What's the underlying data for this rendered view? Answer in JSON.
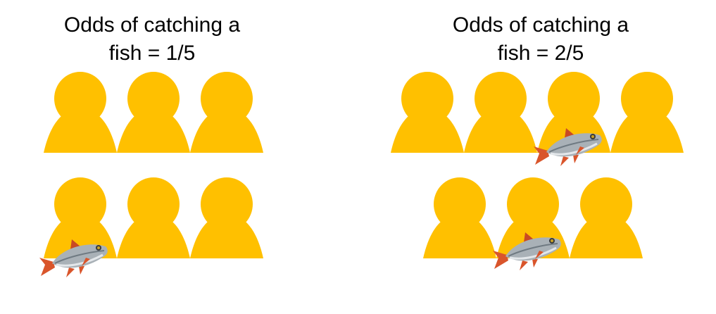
{
  "colors": {
    "person": "#FFC000",
    "fish_body": "#A9B1B7",
    "fish_fin": "#D9552B"
  },
  "panels": [
    {
      "title_line1": "Odds of catching a",
      "title_line2": "fish = 1/5",
      "people_count": 6,
      "fish_count": 1
    },
    {
      "title_line1": "Odds of catching a",
      "title_line2": "fish = 2/5",
      "people_count": 7,
      "fish_count": 2
    }
  ],
  "icons": {
    "person": "person-icon",
    "fish": "fish-icon"
  }
}
